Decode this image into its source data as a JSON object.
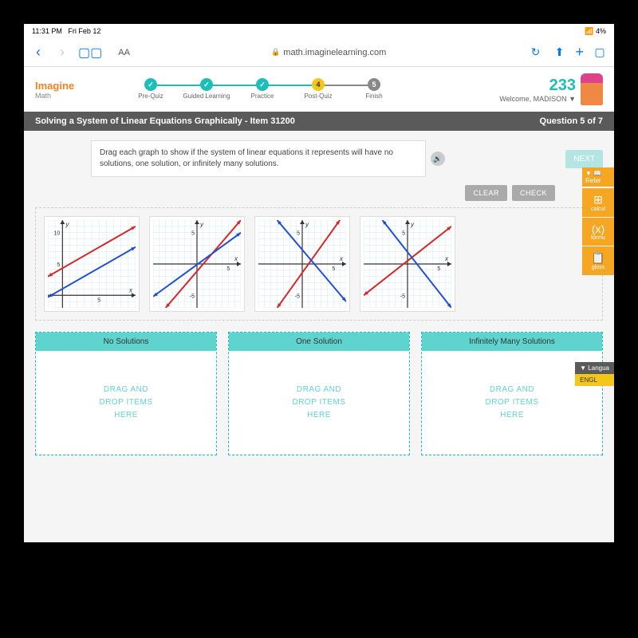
{
  "status_bar": {
    "time": "11:31 PM",
    "date": "Fri Feb 12",
    "battery": "4%"
  },
  "browser": {
    "url": "math.imaginelearning.com"
  },
  "app": {
    "logo_line1": "Imagine",
    "logo_line2": "Math",
    "points": "233",
    "welcome": "Welcome, MADISON ▼"
  },
  "steps": [
    {
      "label": "Pre-Quiz",
      "state": "done",
      "mark": "✓"
    },
    {
      "label": "Guided\nLearning",
      "state": "done",
      "mark": "✓"
    },
    {
      "label": "Practice",
      "state": "done",
      "mark": "✓"
    },
    {
      "label": "Post-Quiz",
      "state": "current",
      "mark": "4"
    },
    {
      "label": "Finish",
      "state": "future",
      "mark": "5"
    }
  ],
  "title_bar": {
    "left": "Solving a System of Linear Equations Graphically - Item 31200",
    "right": "Question 5 of 7"
  },
  "instruction": "Drag each graph to show if the system of linear equations it represents will have no solutions, one solution, or infinitely many solutions.",
  "buttons": {
    "next": "NEXT",
    "clear": "CLEAR",
    "check": "CHECK"
  },
  "graphs": [
    {
      "id": "graph-parallel-q1",
      "xlim": [
        -2,
        10
      ],
      "ylim": [
        -2,
        12
      ],
      "ticks_x": [
        5
      ],
      "ticks_y": [
        5,
        10
      ],
      "lines": [
        {
          "color": "#d62728",
          "x1": -2,
          "y1": 3,
          "x2": 10,
          "y2": 11
        },
        {
          "color": "#1f4fd6",
          "x1": -2,
          "y1": -0.3,
          "x2": 10,
          "y2": 7.7
        }
      ]
    },
    {
      "id": "graph-intersecting-a",
      "xlim": [
        -7,
        7
      ],
      "ylim": [
        -7,
        7
      ],
      "ticks_x": [
        5
      ],
      "ticks_y": [
        -5,
        5
      ],
      "lines": [
        {
          "color": "#d62728",
          "x1": -5,
          "y1": -7,
          "x2": 7,
          "y2": 7
        },
        {
          "color": "#1f4fd6",
          "x1": -7,
          "y1": -5.2,
          "x2": 7,
          "y2": 5
        }
      ]
    },
    {
      "id": "graph-intersecting-b",
      "xlim": [
        -7,
        7
      ],
      "ylim": [
        -7,
        7
      ],
      "ticks_x": [
        5
      ],
      "ticks_y": [
        -5,
        5
      ],
      "lines": [
        {
          "color": "#d62728",
          "x1": -4,
          "y1": -7,
          "x2": 6,
          "y2": 7
        },
        {
          "color": "#1f4fd6",
          "x1": -4,
          "y1": 7,
          "x2": 7,
          "y2": -6
        }
      ]
    },
    {
      "id": "graph-intersecting-c",
      "xlim": [
        -7,
        7
      ],
      "ylim": [
        -7,
        7
      ],
      "ticks_x": [
        5
      ],
      "ticks_y": [
        -5,
        5
      ],
      "lines": [
        {
          "color": "#d62728",
          "x1": -7,
          "y1": -5,
          "x2": 7,
          "y2": 6
        },
        {
          "color": "#1f4fd6",
          "x1": -4,
          "y1": 7,
          "x2": 7,
          "y2": -7
        }
      ]
    }
  ],
  "drop_zones": [
    {
      "label": "No Solutions",
      "placeholder": "DRAG AND\nDROP ITEMS\nHERE"
    },
    {
      "label": "One Solution",
      "placeholder": "DRAG AND\nDROP ITEMS\nHERE"
    },
    {
      "label": "Infinitely Many Solutions",
      "placeholder": "DRAG AND\nDROP ITEMS\nHERE"
    }
  ],
  "tools": {
    "reference": "▼ 📖Refer",
    "items": [
      {
        "icon": "⊞",
        "label": "calcul"
      },
      {
        "icon": "(x)",
        "label": "formu"
      },
      {
        "icon": "📋",
        "label": "gloss"
      }
    ]
  },
  "language": {
    "header": "▼ Langua",
    "button": "ENGL"
  },
  "colors": {
    "teal": "#1bbfb8",
    "teal_light": "#5fd4ce",
    "orange": "#f58220",
    "tool_orange": "#f5a623",
    "yellow": "#f5c518",
    "grey_bar": "#5a5a5a",
    "red_line": "#d62728",
    "blue_line": "#1f4fd6",
    "grid": "#d0e8f0"
  }
}
